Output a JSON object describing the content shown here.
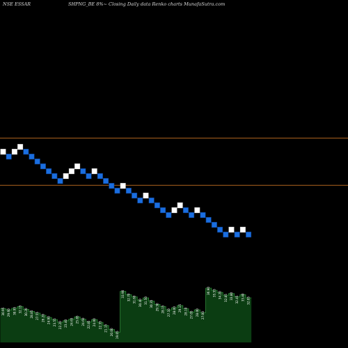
{
  "header": {
    "left": "NSE ESSAR",
    "right": "SHPNG_BE 8%~  Closing Daily data  Renko  charts MunafaSutra.com"
  },
  "colors": {
    "background": "#000000",
    "up_brick": "#ffffff",
    "down_brick": "#1a6ee0",
    "brick_border": "#0d3f8a",
    "level_line": "#b0651e",
    "volume_fill": "#0b3d12",
    "volume_line": "#2f8a3a",
    "volume_label": "#ffffff"
  },
  "chart_data": {
    "type": "renko",
    "title": "",
    "brick_percent": 8,
    "bricks": [
      {
        "dir": "up",
        "level": 0
      },
      {
        "dir": "down",
        "level": -1
      },
      {
        "dir": "up",
        "level": 0
      },
      {
        "dir": "up",
        "level": 1
      },
      {
        "dir": "down",
        "level": 0
      },
      {
        "dir": "down",
        "level": -1
      },
      {
        "dir": "down",
        "level": -2
      },
      {
        "dir": "down",
        "level": -3
      },
      {
        "dir": "down",
        "level": -4
      },
      {
        "dir": "down",
        "level": -5
      },
      {
        "dir": "down",
        "level": -6
      },
      {
        "dir": "up",
        "level": -5
      },
      {
        "dir": "up",
        "level": -4
      },
      {
        "dir": "up",
        "level": -3
      },
      {
        "dir": "down",
        "level": -4
      },
      {
        "dir": "down",
        "level": -5
      },
      {
        "dir": "up",
        "level": -4
      },
      {
        "dir": "down",
        "level": -5
      },
      {
        "dir": "down",
        "level": -6
      },
      {
        "dir": "down",
        "level": -7
      },
      {
        "dir": "down",
        "level": -8
      },
      {
        "dir": "up",
        "level": -7
      },
      {
        "dir": "down",
        "level": -8
      },
      {
        "dir": "down",
        "level": -9
      },
      {
        "dir": "down",
        "level": -10
      },
      {
        "dir": "up",
        "level": -9
      },
      {
        "dir": "down",
        "level": -10
      },
      {
        "dir": "down",
        "level": -11
      },
      {
        "dir": "down",
        "level": -12
      },
      {
        "dir": "down",
        "level": -13
      },
      {
        "dir": "up",
        "level": -12
      },
      {
        "dir": "up",
        "level": -11
      },
      {
        "dir": "down",
        "level": -12
      },
      {
        "dir": "down",
        "level": -13
      },
      {
        "dir": "up",
        "level": -12
      },
      {
        "dir": "down",
        "level": -13
      },
      {
        "dir": "down",
        "level": -14
      },
      {
        "dir": "down",
        "level": -15
      },
      {
        "dir": "down",
        "level": -16
      },
      {
        "dir": "down",
        "level": -17
      },
      {
        "dir": "up",
        "level": -16
      },
      {
        "dir": "down",
        "level": -17
      },
      {
        "dir": "up",
        "level": -16
      },
      {
        "dir": "down",
        "level": -17
      }
    ],
    "reference_levels": [
      2.8,
      -6.9
    ],
    "volume": [
      {
        "v": 0.62,
        "label": "30.95"
      },
      {
        "v": 0.6,
        "label": "29.60"
      },
      {
        "v": 0.63,
        "label": "30.95"
      },
      {
        "v": 0.66,
        "label": "32.15"
      },
      {
        "v": 0.61,
        "label": "30.20"
      },
      {
        "v": 0.57,
        "label": "28.85"
      },
      {
        "v": 0.54,
        "label": "27.55"
      },
      {
        "v": 0.5,
        "label": "26.20"
      },
      {
        "v": 0.46,
        "label": "24.90"
      },
      {
        "v": 0.42,
        "label": "23.55"
      },
      {
        "v": 0.37,
        "label": "22.20"
      },
      {
        "v": 0.4,
        "label": "23.40"
      },
      {
        "v": 0.43,
        "label": "24.65"
      },
      {
        "v": 0.47,
        "label": "25.85"
      },
      {
        "v": 0.43,
        "label": "24.60"
      },
      {
        "v": 0.38,
        "label": "22.85"
      },
      {
        "v": 0.42,
        "label": "24.00"
      },
      {
        "v": 0.37,
        "label": "22.35"
      },
      {
        "v": 0.31,
        "label": "21.15"
      },
      {
        "v": 0.24,
        "label": "20.00"
      },
      {
        "v": 0.19,
        "label": "19.05"
      },
      {
        "v": 0.94,
        "label": "33.90"
      },
      {
        "v": 0.88,
        "label": "32.70"
      },
      {
        "v": 0.84,
        "label": "31.60"
      },
      {
        "v": 0.78,
        "label": "30.40"
      },
      {
        "v": 0.82,
        "label": "31.50"
      },
      {
        "v": 0.76,
        "label": "30.35"
      },
      {
        "v": 0.7,
        "label": "29.30"
      },
      {
        "v": 0.66,
        "label": "28.15"
      },
      {
        "v": 0.6,
        "label": "27.10"
      },
      {
        "v": 0.64,
        "label": "28.00"
      },
      {
        "v": 0.68,
        "label": "29.15"
      },
      {
        "v": 0.62,
        "label": "28.10"
      },
      {
        "v": 0.56,
        "label": "27.05"
      },
      {
        "v": 0.6,
        "label": "28.00"
      },
      {
        "v": 0.55,
        "label": "27.00"
      },
      {
        "v": 1.0,
        "label": "36.90"
      },
      {
        "v": 0.96,
        "label": "35.55"
      },
      {
        "v": 0.92,
        "label": "34.20"
      },
      {
        "v": 0.87,
        "label": "32.85"
      },
      {
        "v": 0.9,
        "label": "33.80"
      },
      {
        "v": 0.84,
        "label": "32.45"
      },
      {
        "v": 0.88,
        "label": "33.40"
      },
      {
        "v": 0.82,
        "label": "32.05"
      }
    ]
  }
}
